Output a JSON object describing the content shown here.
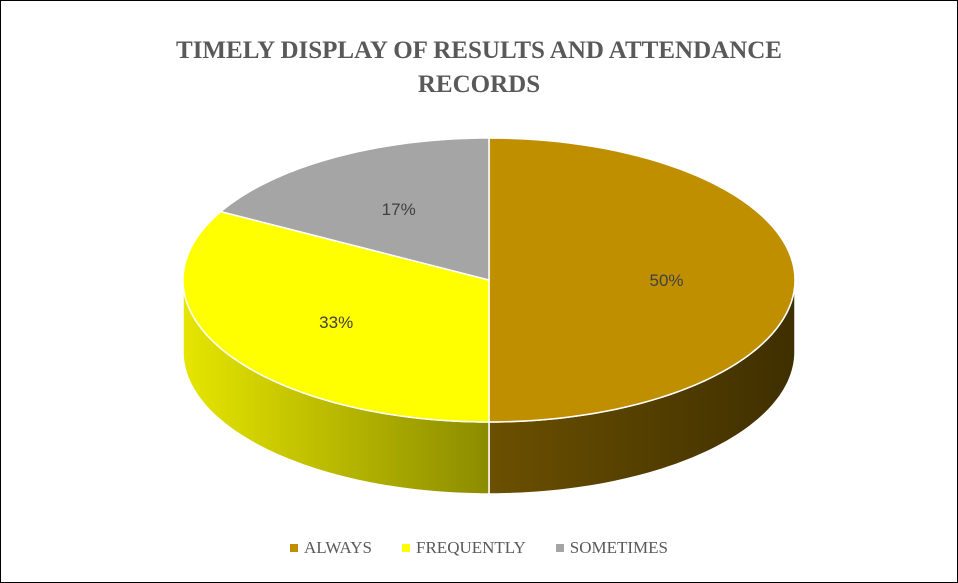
{
  "chart_data": {
    "type": "pie",
    "title_lines": [
      "TIMELY DISPLAY OF RESULTS AND ATTENDANCE",
      "RECORDS"
    ],
    "slices": [
      {
        "label": "ALWAYS",
        "value": 50,
        "display": "50%",
        "color": "#BF8F00",
        "side_dark": "#3F2F00",
        "side_light": "#6B5000"
      },
      {
        "label": "FREQUENTLY",
        "value": 33,
        "display": "33%",
        "color": "#FFFF00",
        "side_dark": "#8B8B00",
        "side_light": "#E6E600"
      },
      {
        "label": "SOMETIMES",
        "value": 17,
        "display": "17%",
        "color": "#A5A5A5",
        "side_dark": "#6E6E6E",
        "side_light": "#8F8F8F"
      }
    ],
    "legend_position": "bottom",
    "style": "3d-pie"
  }
}
